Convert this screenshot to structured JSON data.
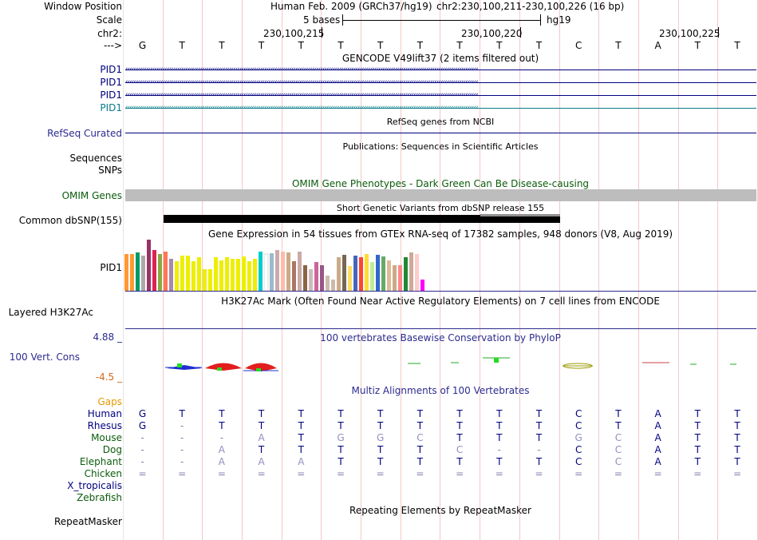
{
  "header": {
    "window_position_label": "Window Position",
    "assembly": "Human Feb. 2009 (GRCh37/hg19)",
    "position": "chr2:230,100,211-230,100,226 (16 bp)",
    "scale_label": "Scale",
    "scale_text": "5 bases",
    "scale_db": "hg19",
    "chrom_label": "chr2:",
    "coords": [
      "230,100,215",
      "230,100,220",
      "230,100,225"
    ],
    "strand_label": "--->"
  },
  "sequence": [
    "G",
    "T",
    "T",
    "T",
    "T",
    "T",
    "T",
    "T",
    "T",
    "T",
    "T",
    "C",
    "T",
    "A",
    "T",
    "T"
  ],
  "gencode": {
    "title": "GENCODE V49lift37 (2 items filtered out)",
    "tracks": [
      "PID1",
      "PID1",
      "PID1",
      "PID1"
    ]
  },
  "refseq": {
    "label": "RefSeq Curated",
    "title": "RefSeq genes from NCBI"
  },
  "publications": {
    "title": "Publications: Sequences in Scientific Articles",
    "sequences_label": "Sequences",
    "snps_label": "SNPs"
  },
  "omim": {
    "title": "OMIM Gene Phenotypes - Dark Green Can Be Disease-causing",
    "label": "OMIM Genes"
  },
  "dbsnp": {
    "title": "Short Genetic Variants from dbSNP release 155",
    "label": "Common dbSNP(155)"
  },
  "gtex": {
    "title": "Gene Expression in 54 tissues from GTEx RNA-seq of 17382 samples, 948 donors (V8, Aug 2019)",
    "label": "PID1",
    "values": [
      0.72,
      0.72,
      0.75,
      0.68,
      1.0,
      0.8,
      0.72,
      0.77,
      0.62,
      0.58,
      0.68,
      0.69,
      0.58,
      0.65,
      0.42,
      0.42,
      0.66,
      0.59,
      0.66,
      0.63,
      0.63,
      0.67,
      0.58,
      0.62,
      0.77,
      0.72,
      0.73,
      0.8,
      0.77,
      0.75,
      0.58,
      0.77,
      0.5,
      0.42,
      0.56,
      0.5,
      0.3,
      0.22,
      0.66,
      0.71,
      0.48,
      0.68,
      0.66,
      0.72,
      0.56,
      0.7,
      0.67,
      0.6,
      0.5,
      0.5,
      0.65,
      0.75,
      0.72,
      0.22
    ],
    "colors": [
      "#ff9933",
      "#ff9933",
      "#009966",
      "#aaaaaa",
      "#993366",
      "#dd2255",
      "#88aa44",
      "#ff7755",
      "#aa88aa",
      "#eeee00",
      "#eeee00",
      "#eeee00",
      "#eeee00",
      "#eeee00",
      "#eeee00",
      "#eeee00",
      "#eeee00",
      "#eeee00",
      "#eeee00",
      "#eeee00",
      "#eeee00",
      "#eeee00",
      "#eeee00",
      "#eeee00",
      "#00cccc",
      "#ffffff",
      "#99bbcc",
      "#ccaaaa",
      "#ffbbaa",
      "#ccaa88",
      "#aa7766",
      "#ccaaaa",
      "#886644",
      "#ccbbbb",
      "#cc6699",
      "#995588",
      "#ccbbaa",
      "#ccbbaa",
      "#ccaa88",
      "#776655",
      "#ffdd66",
      "#4466bb",
      "#ff4433",
      "#ffdd33",
      "#bbee99",
      "#3366cc",
      "#66aa66",
      "#ddbb99",
      "#ccaa88",
      "#ff8888",
      "#228833",
      "#ccaa99",
      "#ffcccc",
      "#ff00ff"
    ]
  },
  "h3k27ac": {
    "title": "H3K27Ac Mark (Often Found Near Active Regulatory Elements) on 7 cell lines from ENCODE",
    "label": "Layered H3K27Ac"
  },
  "phylop": {
    "title": "100 vertebrates Basewise Conservation by PhyloP",
    "label": "100 Vert. Cons",
    "max_label": "4.88 _",
    "min_label": "-4.5 _"
  },
  "multiz": {
    "title": "Multiz Alignments of 100 Vertebrates",
    "gaps_label": "Gaps",
    "species": [
      {
        "name": "Human",
        "seq": [
          "G",
          "T",
          "T",
          "T",
          "T",
          "T",
          "T",
          "T",
          "T",
          "T",
          "T",
          "C",
          "T",
          "A",
          "T",
          "T"
        ]
      },
      {
        "name": "Rhesus",
        "seq": [
          "G",
          "-",
          "T",
          "T",
          "T",
          "T",
          "T",
          "T",
          "T",
          "T",
          "T",
          "C",
          "T",
          "A",
          "T",
          "T"
        ]
      },
      {
        "name": "Mouse",
        "seq": [
          "-",
          "-",
          "-",
          "A",
          "T",
          "G",
          "G",
          "C",
          "T",
          "T",
          "T",
          "G",
          "C",
          "A",
          "T",
          "T"
        ]
      },
      {
        "name": "Dog",
        "seq": [
          "-",
          "-",
          "A",
          "T",
          "T",
          "T",
          "T",
          "T",
          "C",
          "-",
          "-",
          "C",
          "C",
          "A",
          "T",
          "T"
        ]
      },
      {
        "name": "Elephant",
        "seq": [
          "-",
          "-",
          "A",
          "A",
          "A",
          "T",
          "T",
          "T",
          "T",
          "T",
          "T",
          "C",
          "C",
          "A",
          "T",
          "T"
        ]
      },
      {
        "name": "Chicken",
        "seq": [
          "=",
          "=",
          "=",
          "=",
          "=",
          "=",
          "=",
          "=",
          "=",
          "=",
          "=",
          "=",
          "=",
          "=",
          "=",
          "="
        ]
      },
      {
        "name": "X_tropicalis",
        "seq": []
      },
      {
        "name": "Zebrafish",
        "seq": []
      }
    ]
  },
  "repeatmasker": {
    "title": "Repeating Elements by RepeatMasker",
    "label": "RepeatMasker"
  },
  "colors": {
    "navy": "#000080",
    "omim_green": "#0b5c0b",
    "gaps_orange": "#e69900",
    "track_blue": "#2b2b8f",
    "gencode_teal": "#0a7b8a",
    "grid": "#f3c8c8"
  }
}
